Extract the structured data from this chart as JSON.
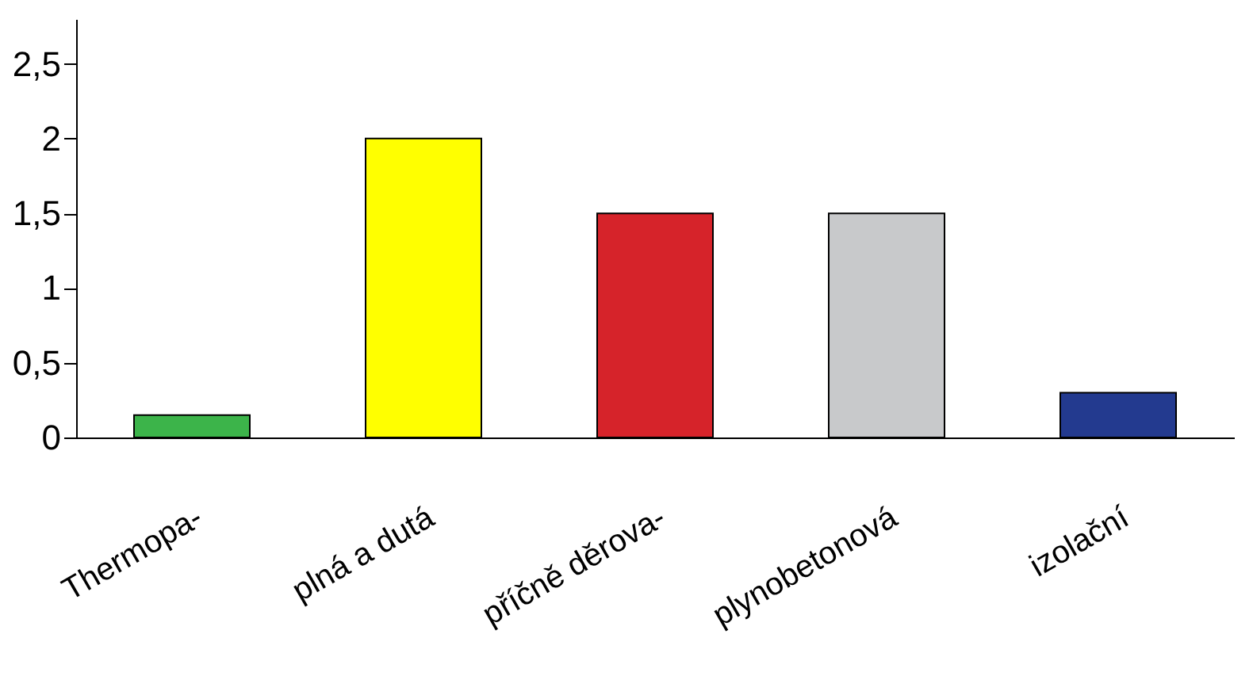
{
  "chart_data": {
    "type": "bar",
    "categories": [
      "Thermopa-",
      "plná a dutá",
      "příčně děrova-",
      "plynobetonová",
      "izolační"
    ],
    "values": [
      0.15,
      2,
      1.5,
      1.5,
      0.3
    ],
    "colors": [
      "#3cb44a",
      "#ffff00",
      "#d6232a",
      "#c8c9cb",
      "#233a8f"
    ],
    "ylim": [
      0,
      2.8
    ],
    "yticks": [
      0,
      {
        "value": 0.5,
        "label": "0,5"
      },
      1,
      {
        "value": 1.5,
        "label": "1,5"
      },
      2,
      {
        "value": 2.5,
        "label": "2,5"
      }
    ],
    "grid": false
  }
}
